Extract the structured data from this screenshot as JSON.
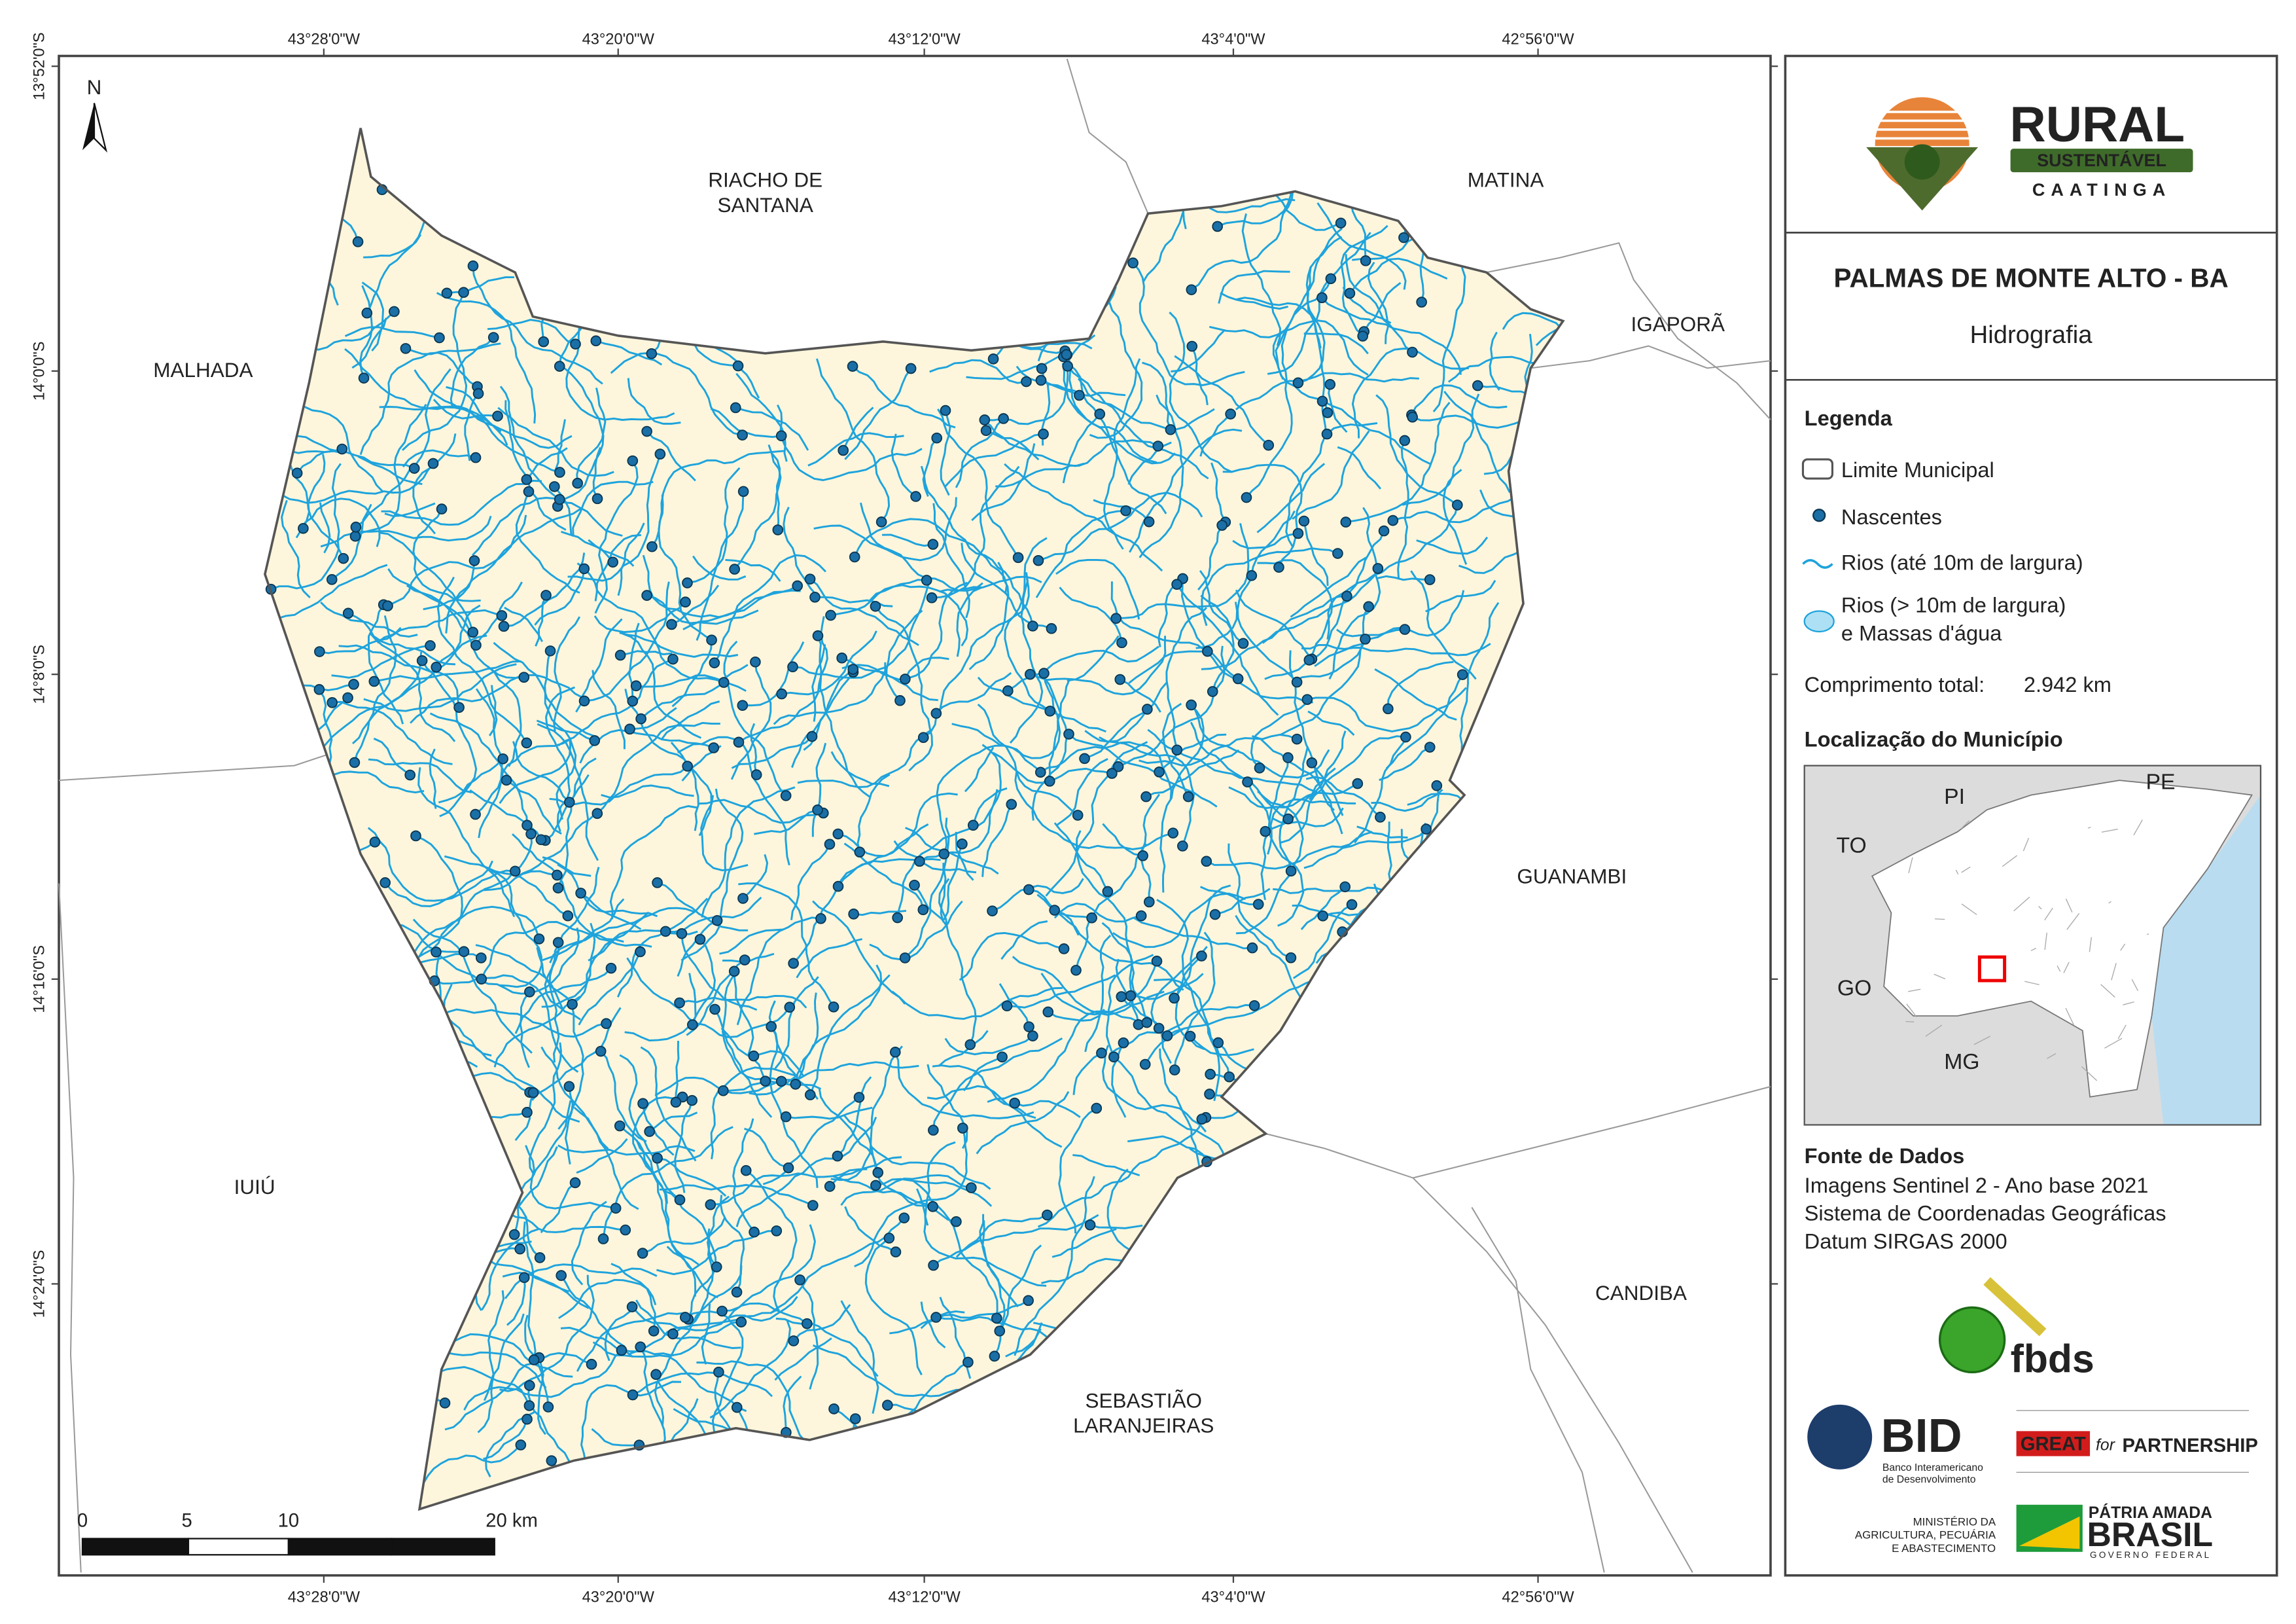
{
  "map": {
    "north": "N",
    "longitude_labels": [
      "43°28'0\"W",
      "43°20'0\"W",
      "43°12'0\"W",
      "43°4'0\"W",
      "42°56'0\"W"
    ],
    "latitude_labels": [
      "13°52'0\"S",
      "14°0'0\"S",
      "14°8'0\"S",
      "14°16'0\"S",
      "14°24'0\"S"
    ],
    "neighbors": [
      [
        "RIACHO DE",
        "SANTANA"
      ],
      [
        "MATINA"
      ],
      [
        "IGAPORÃ"
      ],
      [
        "MALHADA"
      ],
      [
        "GUANAMBI"
      ],
      [
        "IUIÚ"
      ],
      [
        "CANDIBA"
      ],
      [
        "SEBASTIÃO",
        "LARANJEIRAS"
      ]
    ],
    "scale_bar": [
      "0",
      "5",
      "10",
      "20 km"
    ]
  },
  "panel": {
    "logo": {
      "word": "RURAL",
      "band": "SUSTENTÁVEL",
      "sub": "CAATINGA"
    },
    "title": "PALMAS DE MONTE ALTO - BA",
    "subtitle": "Hidrografia",
    "legend": {
      "title": "Legenda",
      "items": [
        [
          "Limite Municipal"
        ],
        [
          "Nascentes"
        ],
        [
          "Rios (até 10m de largura)"
        ],
        [
          "Rios (> 10m de largura)",
          "e Massas d'água"
        ]
      ]
    },
    "total_length": {
      "label": "Comprimento total:",
      "value": "2.942 km"
    },
    "location": {
      "title": "Localização do Município",
      "states": [
        "PI",
        "PE",
        "TO",
        "GO",
        "MG"
      ]
    },
    "sources": {
      "title": "Fonte de Dados",
      "lines": [
        "Imagens Sentinel 2 - Ano base 2021",
        "Sistema de Coordenadas Geográficas",
        "Datum SIRGAS 2000"
      ]
    },
    "partners": {
      "fbds": "fbds",
      "bid": "BID",
      "bid_name": [
        "Banco Interamericano",
        "de Desenvolvimento"
      ],
      "great": "GREAT",
      "great_for": "for",
      "great_partnership": "PARTNERSHIP",
      "ministry": [
        "MINISTÉRIO DA",
        "AGRICULTURA, PECUÁRIA",
        "E ABASTECIMENTO"
      ],
      "brasil_top": "PÁTRIA AMADA",
      "brasil": "BRASIL",
      "brasil_sub": "GOVERNO FEDERAL"
    }
  }
}
